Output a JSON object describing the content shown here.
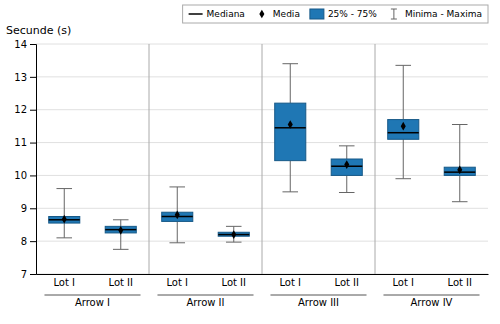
{
  "chart_data": {
    "type": "box",
    "ylabel": "Secunde (s)",
    "categories": [
      "Lot I",
      "Lot II",
      "Lot I",
      "Lot II",
      "Lot I",
      "Lot II",
      "Lot I",
      "Lot II"
    ],
    "category_groups": [
      "Arrow I",
      "Arrow II",
      "Arrow III",
      "Arrow IV"
    ],
    "boxes": [
      {
        "q1": 8.55,
        "median": 8.65,
        "q3": 8.75,
        "mean": 8.67,
        "whislo": 8.1,
        "whishi": 9.6
      },
      {
        "q1": 8.25,
        "median": 8.35,
        "q3": 8.45,
        "mean": 8.33,
        "whislo": 7.75,
        "whishi": 8.65
      },
      {
        "q1": 8.6,
        "median": 8.75,
        "q3": 8.88,
        "mean": 8.8,
        "whislo": 7.95,
        "whishi": 9.65
      },
      {
        "q1": 8.15,
        "median": 8.2,
        "q3": 8.27,
        "mean": 8.2,
        "whislo": 7.97,
        "whishi": 8.45
      },
      {
        "q1": 10.45,
        "median": 11.45,
        "q3": 12.2,
        "mean": 11.55,
        "whislo": 9.5,
        "whishi": 13.4
      },
      {
        "q1": 10.0,
        "median": 10.28,
        "q3": 10.5,
        "mean": 10.33,
        "whislo": 9.48,
        "whishi": 10.9
      },
      {
        "q1": 11.1,
        "median": 11.3,
        "q3": 11.7,
        "mean": 11.5,
        "whislo": 9.9,
        "whishi": 13.35
      },
      {
        "q1": 10.0,
        "median": 10.1,
        "q3": 10.25,
        "mean": 10.17,
        "whislo": 9.2,
        "whishi": 11.55
      }
    ],
    "legend_entries": [
      "Mediana",
      "Media",
      "25% - 75%",
      "Minima - Maxima"
    ],
    "ylim": [
      7,
      14
    ],
    "yticks": [
      7,
      8,
      9,
      10,
      11,
      12,
      13,
      14
    ],
    "grid": true,
    "legend": "upper right"
  }
}
